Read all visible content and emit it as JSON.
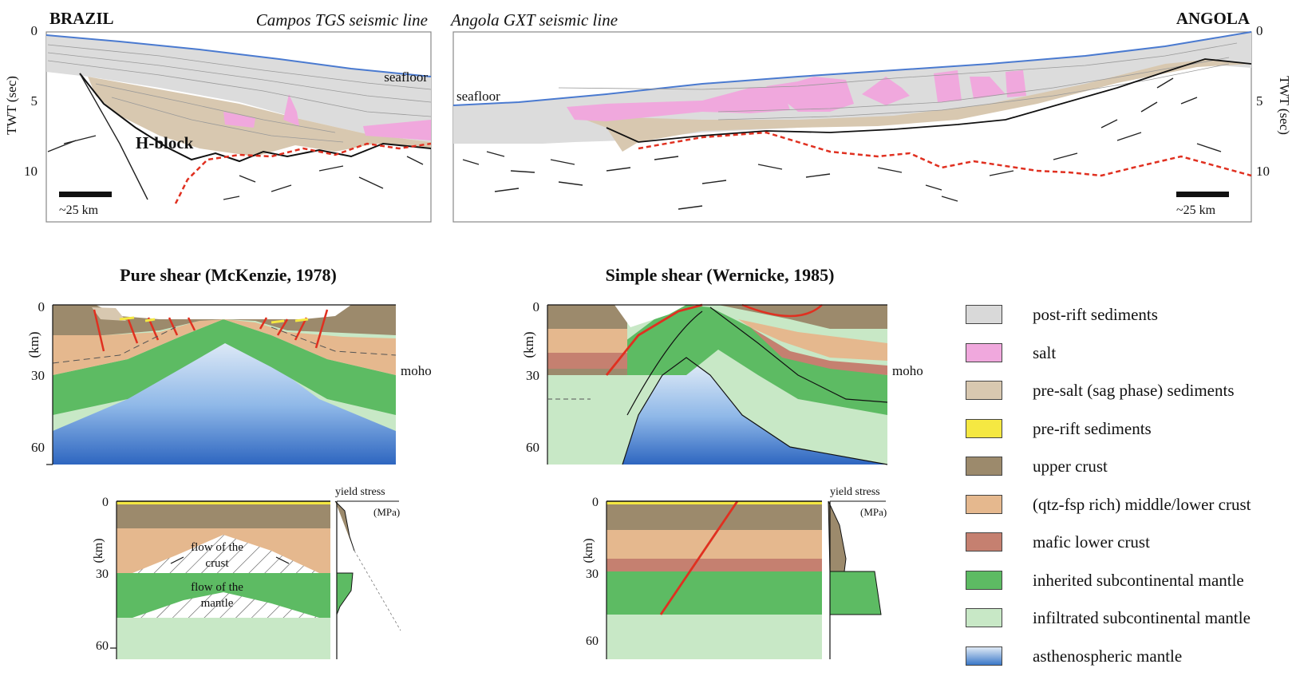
{
  "seismic": {
    "left_country": "BRAZIL",
    "left_line_title": "Campos TGS seismic line",
    "right_line_title": "Angola GXT seismic line",
    "right_country": "ANGOLA",
    "seafloor_left": "seafloor",
    "seafloor_right": "seafloor",
    "hblock": "H-block",
    "scale_left": "~25 km",
    "scale_right": "~25 km",
    "axis_label": "TWT (sec)",
    "ticks": [
      "0",
      "5",
      "10"
    ]
  },
  "models": {
    "pure_title": "Pure shear (McKenzie, 1978)",
    "simple_title": "Simple shear (Wernicke, 1985)",
    "depth_label": "(km)",
    "depth_ticks": [
      "0",
      "30",
      "60"
    ],
    "moho": "moho",
    "yield_stress": "yield stress",
    "mpa": "(MPa)",
    "flow_crust_1": "flow of the",
    "flow_crust_2": "crust",
    "flow_mantle_1": "flow of the",
    "flow_mantle_2": "mantle"
  },
  "legend": [
    {
      "label": "post-rift sediments",
      "color": "#d9d9d9"
    },
    {
      "label": "salt",
      "color": "#f0a8dd"
    },
    {
      "label": "pre-salt (sag phase) sediments",
      "color": "#d8c8b0"
    },
    {
      "label": "pre-rift sediments",
      "color": "#f5e842"
    },
    {
      "label": "upper crust",
      "color": "#9c8a6c"
    },
    {
      "label": "(qtz-fsp rich) middle/lower crust",
      "color": "#e5b88e"
    },
    {
      "label": "mafic lower crust",
      "color": "#c58070"
    },
    {
      "label": "inherited subcontinental mantle",
      "color": "#5dbb63"
    },
    {
      "label": "infiltrated subcontinental mantle",
      "color": "#c8e8c6"
    },
    {
      "label": "asthenospheric mantle",
      "color": "#3a78c8"
    }
  ]
}
